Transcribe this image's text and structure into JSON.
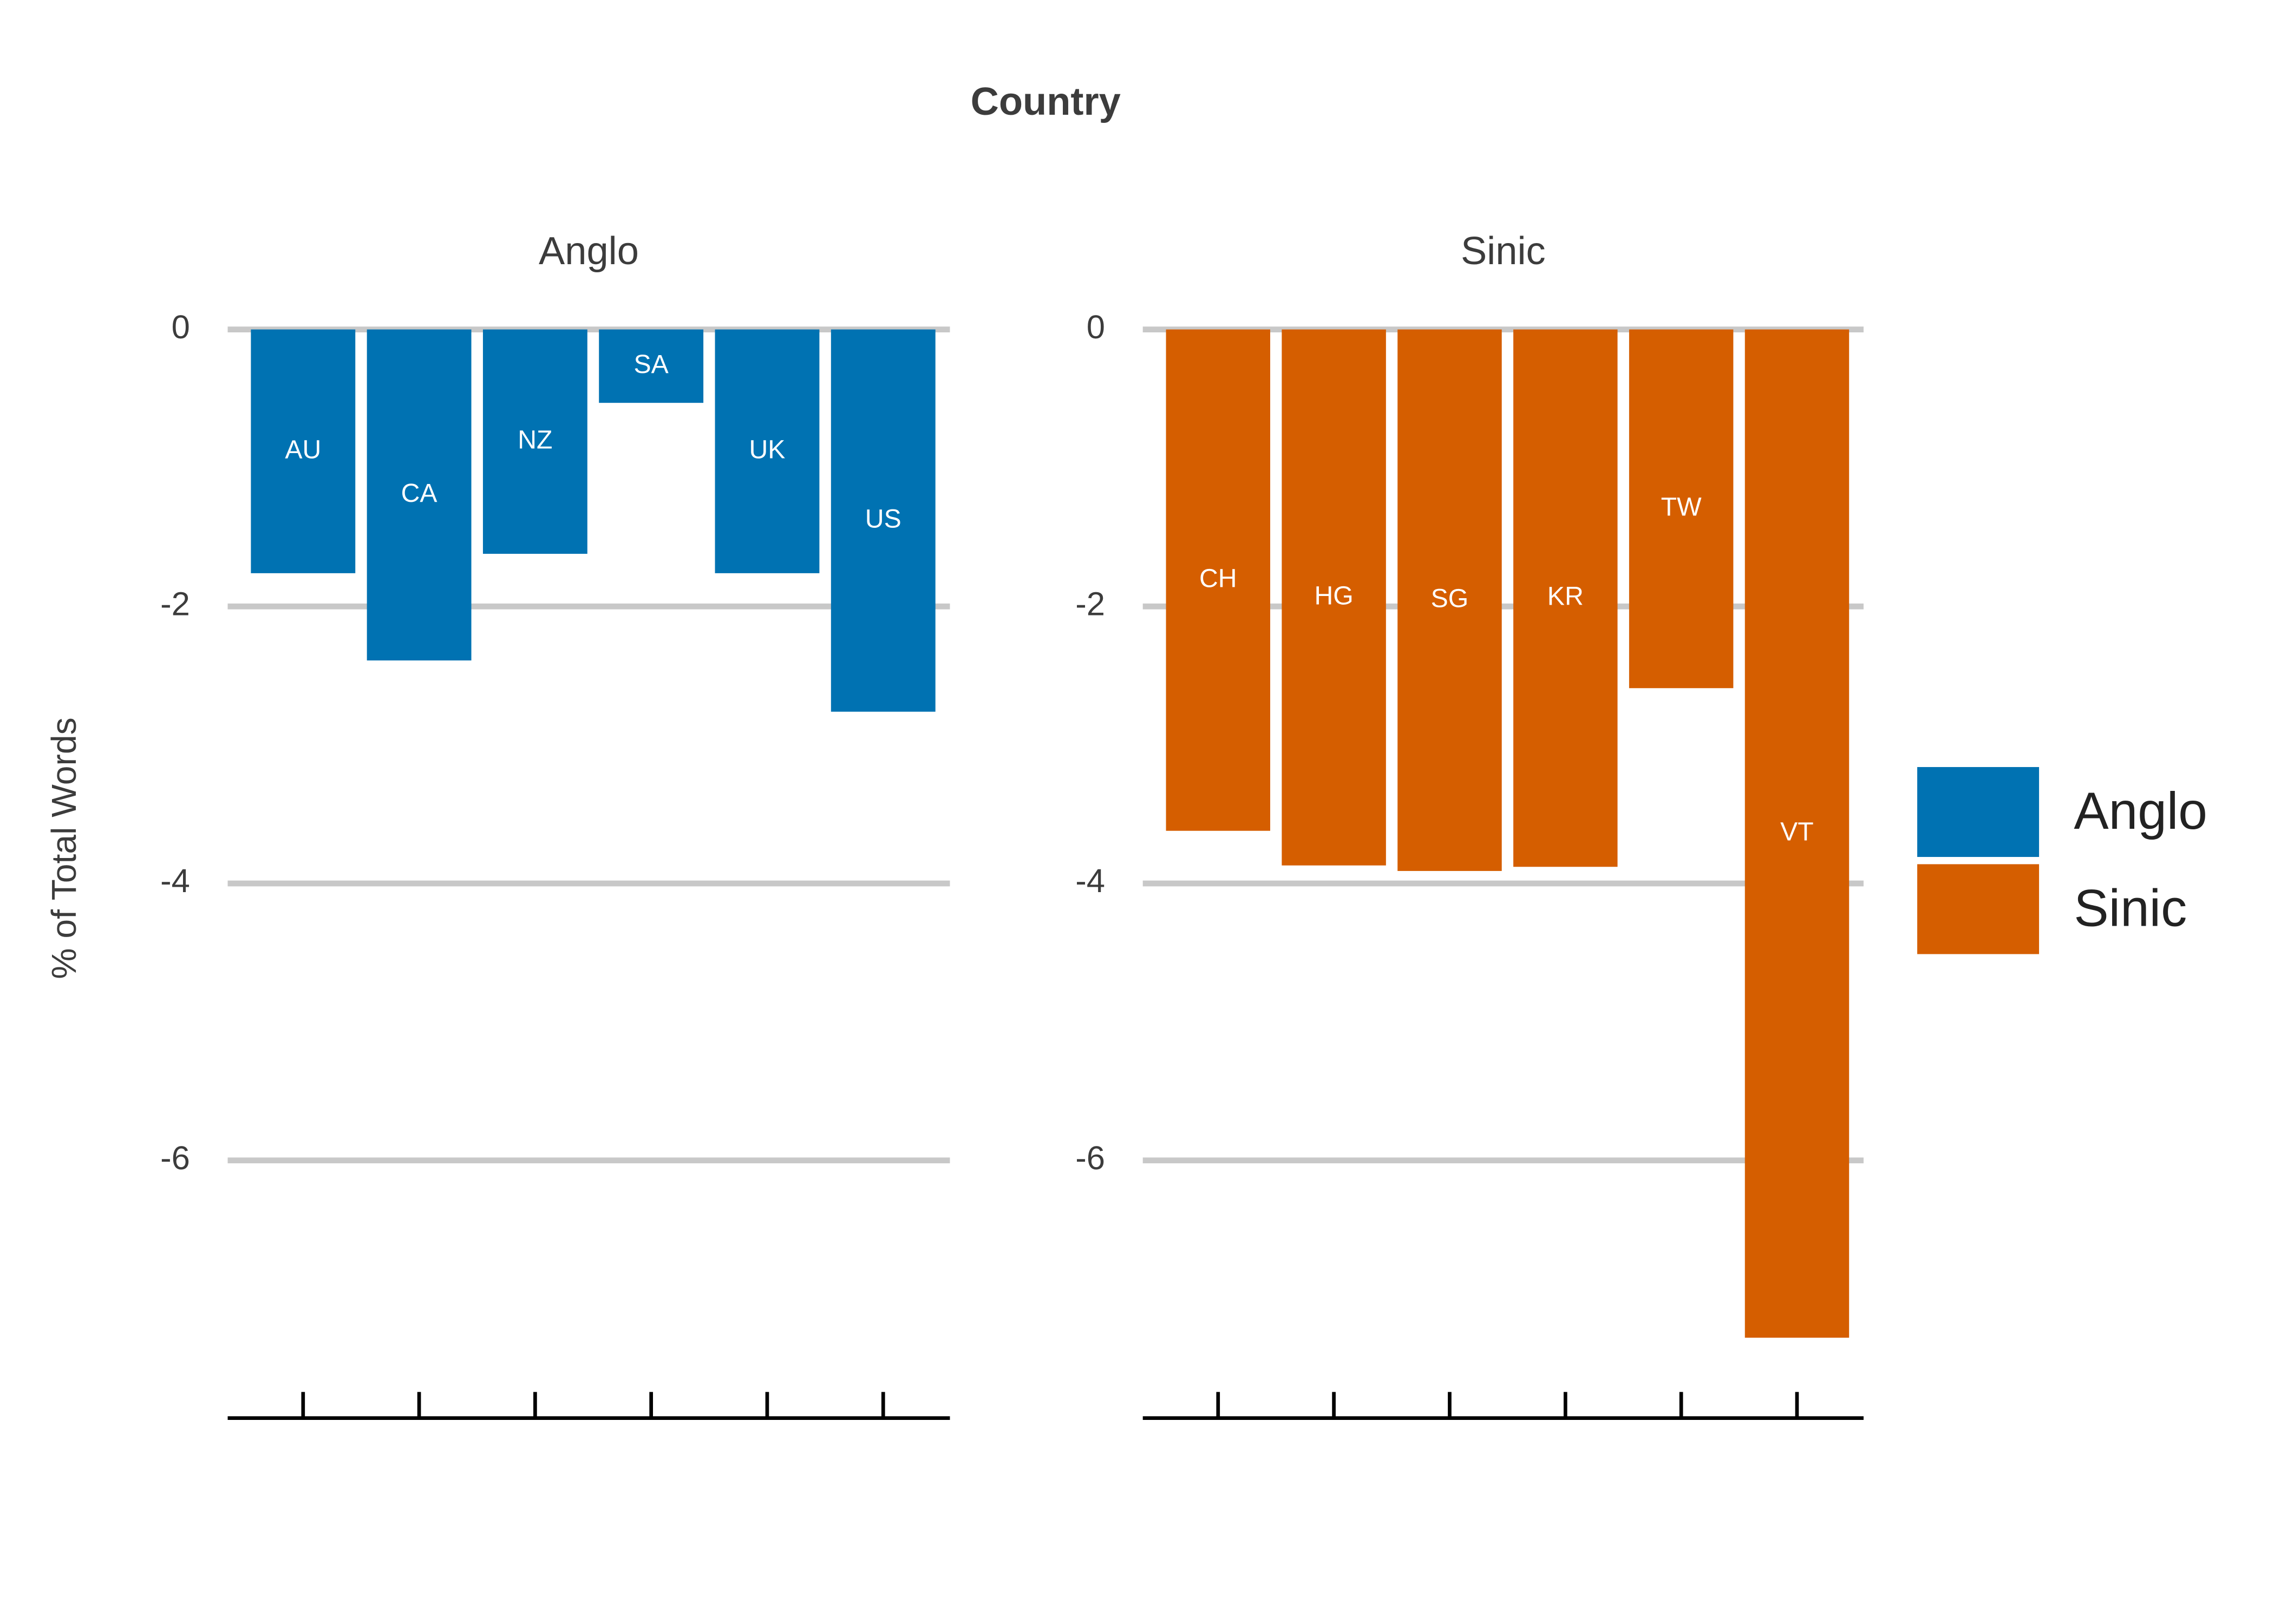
{
  "chart_data": {
    "type": "bar",
    "title": "Country",
    "ylabel": "% of Total Words",
    "ylim": [
      -7.85,
      0.4
    ],
    "yticks": [
      0,
      -2,
      -4,
      -6
    ],
    "grid": true,
    "legend": "right",
    "facets": [
      {
        "name": "Anglo",
        "color": "#0072b2",
        "categories": [
          "AU",
          "CA",
          "NZ",
          "SA",
          "UK",
          "US"
        ],
        "values": [
          -1.76,
          -2.39,
          -1.62,
          -0.53,
          -1.76,
          -2.76
        ]
      },
      {
        "name": "Sinic",
        "color": "#d55e00",
        "categories": [
          "CH",
          "HG",
          "SG",
          "KR",
          "TW",
          "VT"
        ],
        "values": [
          -3.62,
          -3.87,
          -3.91,
          -3.88,
          -2.59,
          -7.28
        ]
      }
    ]
  }
}
